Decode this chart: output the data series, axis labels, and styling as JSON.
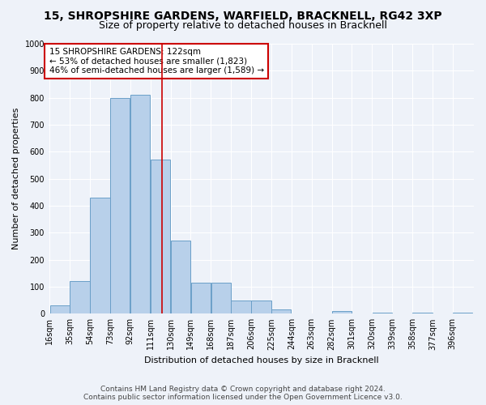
{
  "title_line1": "15, SHROPSHIRE GARDENS, WARFIELD, BRACKNELL, RG42 3XP",
  "title_line2": "Size of property relative to detached houses in Bracknell",
  "xlabel": "Distribution of detached houses by size in Bracknell",
  "ylabel": "Number of detached properties",
  "footer_line1": "Contains HM Land Registry data © Crown copyright and database right 2024.",
  "footer_line2": "Contains public sector information licensed under the Open Government Licence v3.0.",
  "annotation_line1": "15 SHROPSHIRE GARDENS: 122sqm",
  "annotation_line2": "← 53% of detached houses are smaller (1,823)",
  "annotation_line3": "46% of semi-detached houses are larger (1,589) →",
  "property_size": 122,
  "bin_left_edges": [
    16,
    35,
    54,
    73,
    92,
    111,
    130,
    149,
    168,
    187,
    206,
    225,
    244,
    263,
    282,
    301,
    320,
    339,
    358,
    377,
    396
  ],
  "bar_heights": [
    30,
    120,
    430,
    800,
    810,
    570,
    270,
    115,
    115,
    50,
    50,
    15,
    0,
    0,
    10,
    0,
    5,
    0,
    5,
    0,
    5
  ],
  "bin_width": 19,
  "bar_color": "#b8d0ea",
  "bar_edge_color": "#6a9fc8",
  "vline_color": "#cc0000",
  "annotation_box_edge_color": "#cc0000",
  "background_color": "#eef2f9",
  "plot_bg_color": "#eef2f9",
  "ylim": [
    0,
    1000
  ],
  "yticks": [
    0,
    100,
    200,
    300,
    400,
    500,
    600,
    700,
    800,
    900,
    1000
  ],
  "grid_color": "#ffffff",
  "title_fontsize": 10,
  "subtitle_fontsize": 9,
  "axis_label_fontsize": 8,
  "tick_fontsize": 7,
  "annotation_fontsize": 7.5,
  "footer_fontsize": 6.5
}
